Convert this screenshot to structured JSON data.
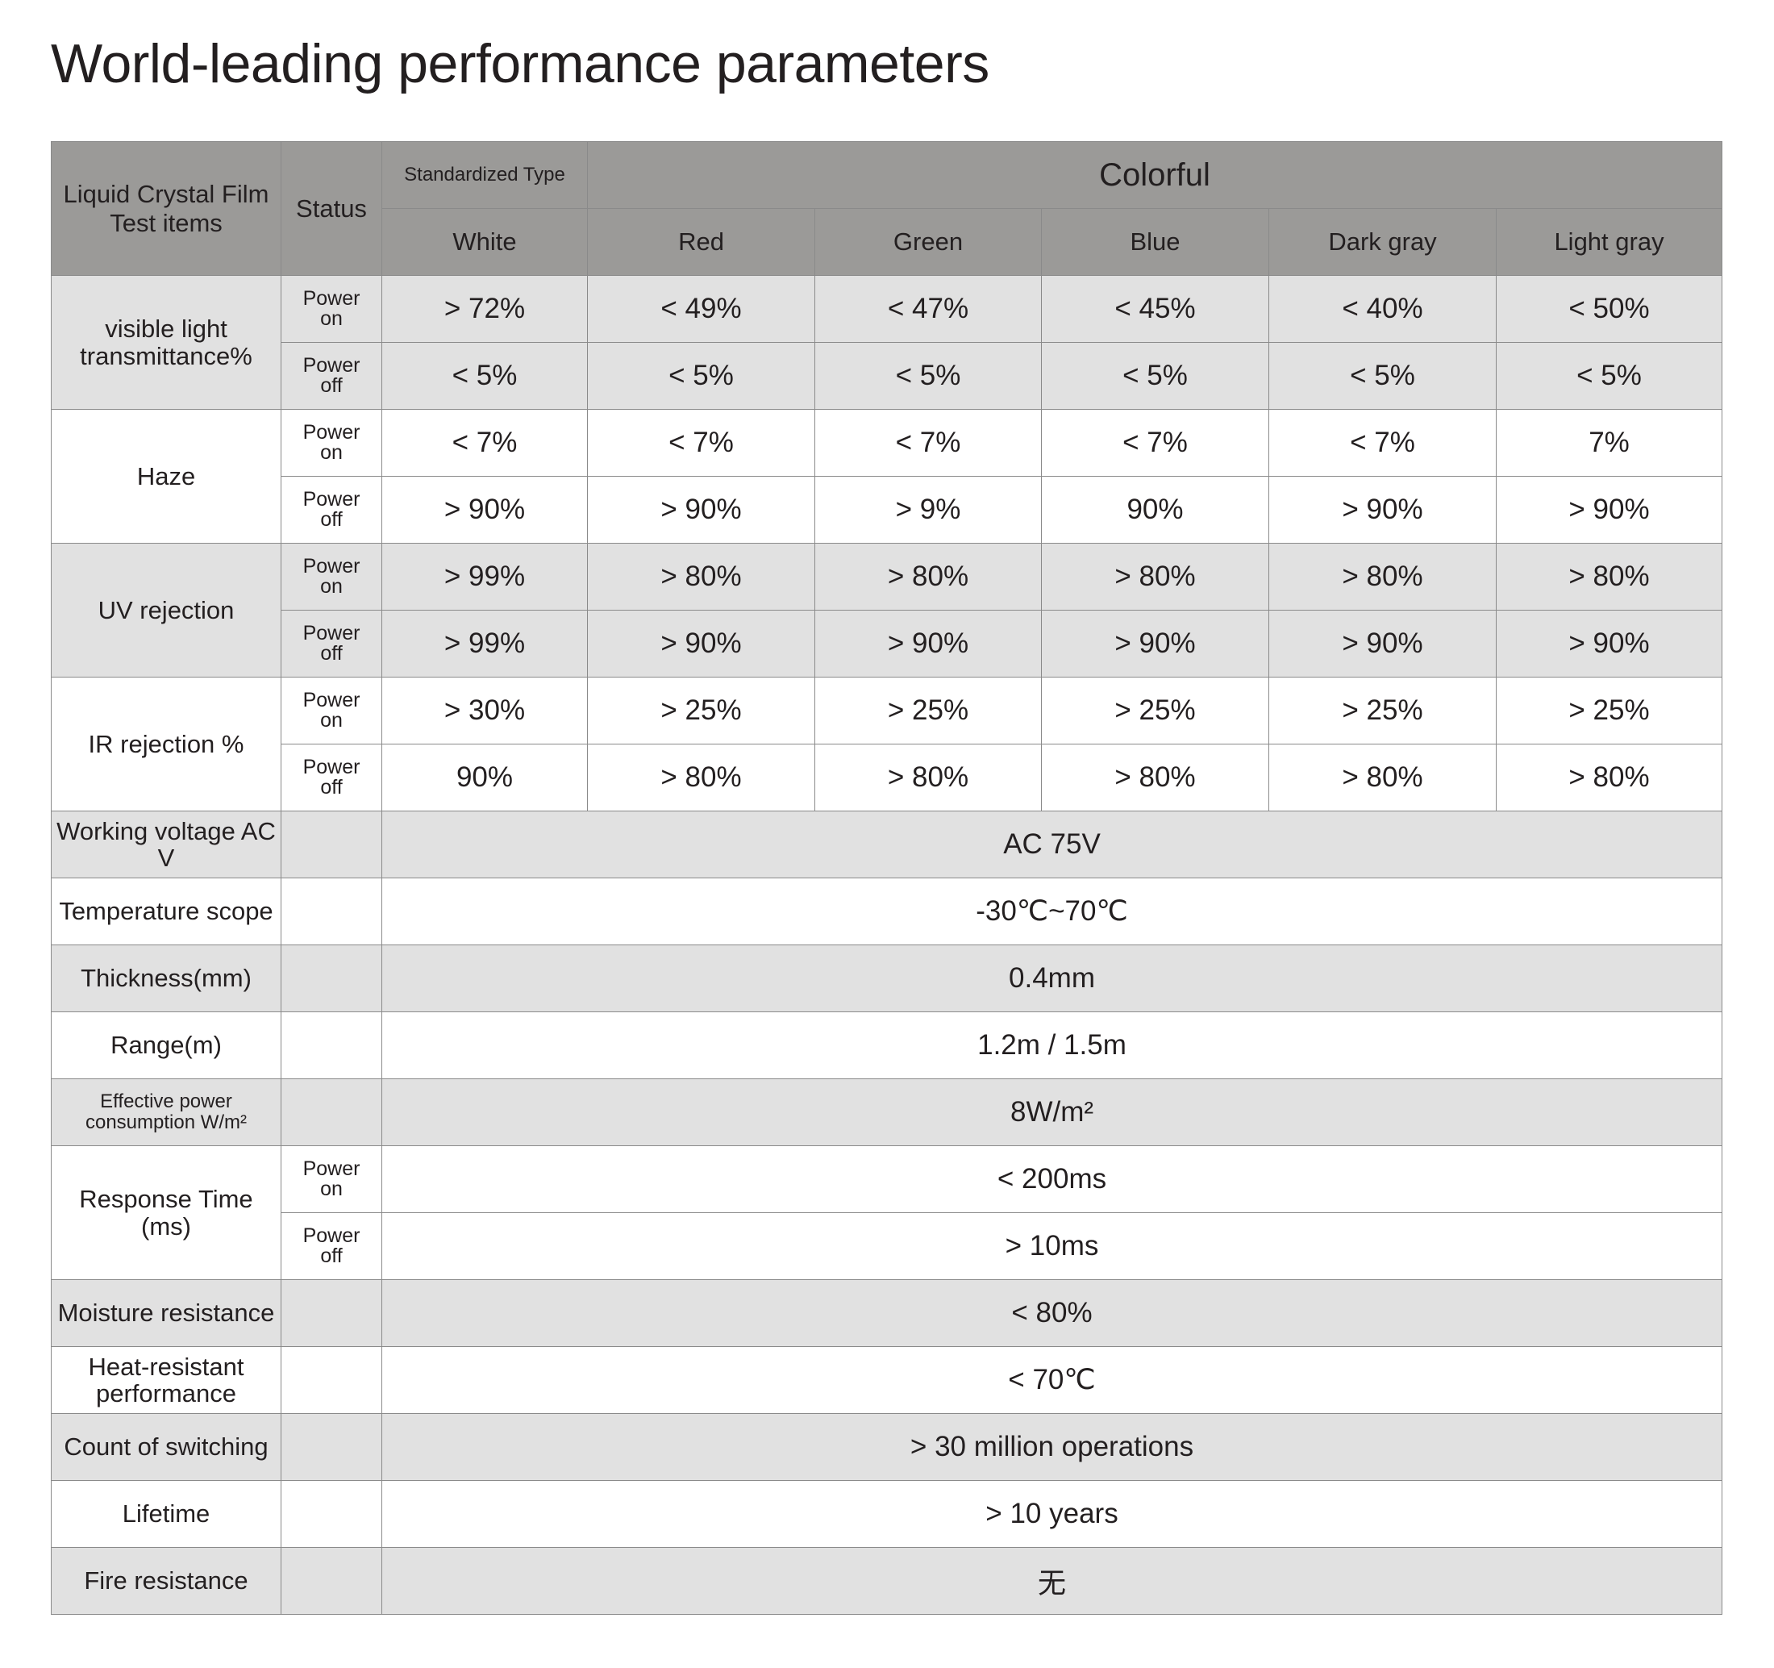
{
  "title": "World-leading performance parameters",
  "table": {
    "header": {
      "test_items": "Liquid Crystal Film Test items",
      "status": "Status",
      "standardized": "Standardized Type",
      "colorful": "Colorful",
      "colors": [
        "White",
        "Red",
        "Green",
        "Blue",
        "Dark gray",
        "Light gray"
      ]
    },
    "rows": [
      {
        "item": "visible light transmittance%",
        "states": [
          {
            "status": "Power on",
            "values": [
              "> 72%",
              "< 49%",
              "< 47%",
              "< 45%",
              "< 40%",
              "< 50%"
            ]
          },
          {
            "status": "Power off",
            "values": [
              "< 5%",
              "< 5%",
              "< 5%",
              "< 5%",
              "< 5%",
              "< 5%"
            ]
          }
        ]
      },
      {
        "item": "Haze",
        "states": [
          {
            "status": "Power on",
            "values": [
              "< 7%",
              "< 7%",
              "< 7%",
              "< 7%",
              "< 7%",
              "7%"
            ]
          },
          {
            "status": "Power off",
            "values": [
              "> 90%",
              "> 90%",
              "> 9%",
              "90%",
              "> 90%",
              "> 90%"
            ]
          }
        ]
      },
      {
        "item": "UV rejection",
        "states": [
          {
            "status": "Power on",
            "values": [
              "> 99%",
              "> 80%",
              "> 80%",
              "> 80%",
              "> 80%",
              "> 80%"
            ]
          },
          {
            "status": "Power off",
            "values": [
              "> 99%",
              "> 90%",
              "> 90%",
              "> 90%",
              "> 90%",
              "> 90%"
            ]
          }
        ]
      },
      {
        "item": "IR rejection %",
        "states": [
          {
            "status": "Power on",
            "values": [
              "> 30%",
              "> 25%",
              "> 25%",
              "> 25%",
              "> 25%",
              "> 25%"
            ]
          },
          {
            "status": "Power off",
            "values": [
              "90%",
              "> 80%",
              "> 80%",
              "> 80%",
              "> 80%",
              "> 80%"
            ]
          }
        ]
      },
      {
        "item": "Working voltage AC V",
        "value": "AC 75V"
      },
      {
        "item": "Temperature scope",
        "value": "-30℃~70℃"
      },
      {
        "item": "Thickness(mm)",
        "value": "0.4mm"
      },
      {
        "item": "Range(m)",
        "value": "1.2m  /  1.5m"
      },
      {
        "item": "Effective power consumption W/m²",
        "value": "8W/m²"
      },
      {
        "item": "Response Time (ms)",
        "states": [
          {
            "status": "Power on",
            "value": "< 200ms"
          },
          {
            "status": "Power off",
            "value": "> 10ms"
          }
        ]
      },
      {
        "item": "Moisture resistance",
        "value": "< 80%"
      },
      {
        "item": "Heat-resistant performance",
        "value": "< 70℃"
      },
      {
        "item": "Count of switching",
        "value": ">  30 million operations"
      },
      {
        "item": "Lifetime",
        "value": "> 10 years"
      },
      {
        "item": "Fire resistance",
        "value": "无"
      }
    ]
  }
}
